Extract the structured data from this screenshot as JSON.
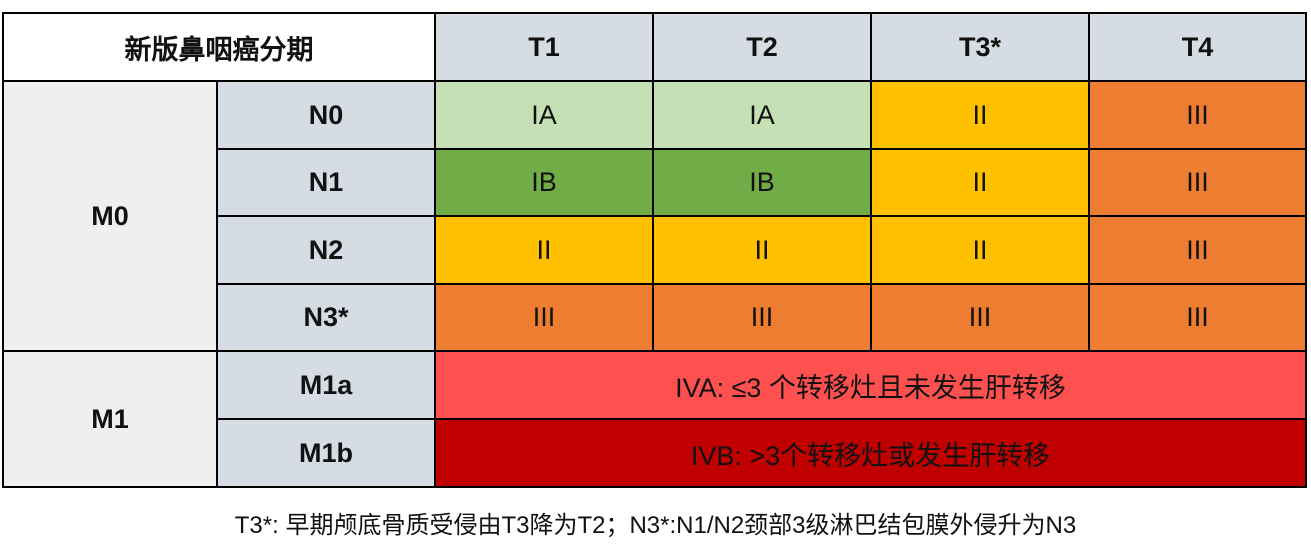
{
  "title": "新版鼻咽癌分期",
  "t_headers": [
    "T1",
    "T2",
    "T3*",
    "T4"
  ],
  "m0": {
    "label": "M0",
    "rows": [
      {
        "n": "N0",
        "cells": [
          "IA",
          "IA",
          "II",
          "III"
        ]
      },
      {
        "n": "N1",
        "cells": [
          "IB",
          "IB",
          "II",
          "III"
        ]
      },
      {
        "n": "N2",
        "cells": [
          "II",
          "II",
          "II",
          "III"
        ]
      },
      {
        "n": "N3*",
        "cells": [
          "III",
          "III",
          "III",
          "III"
        ]
      }
    ]
  },
  "m1": {
    "label": "M1",
    "rows": [
      {
        "n": "M1a",
        "text": "IVA: ≤3 个转移灶且未发生肝转移"
      },
      {
        "n": "M1b",
        "text": "IVB: >3个转移灶或发生肝转移"
      }
    ]
  },
  "colors": {
    "IA": "#c5e0b4",
    "IB": "#70ad47",
    "II": "#ffc000",
    "III": "#ed7d31",
    "IVA": "#ff5050",
    "IVB": "#c00000"
  },
  "footnote": "T3*: 早期颅底骨质受侵由T3降为T2；N3*:N1/N2颈部3级淋巴结包膜外侵升为N3"
}
